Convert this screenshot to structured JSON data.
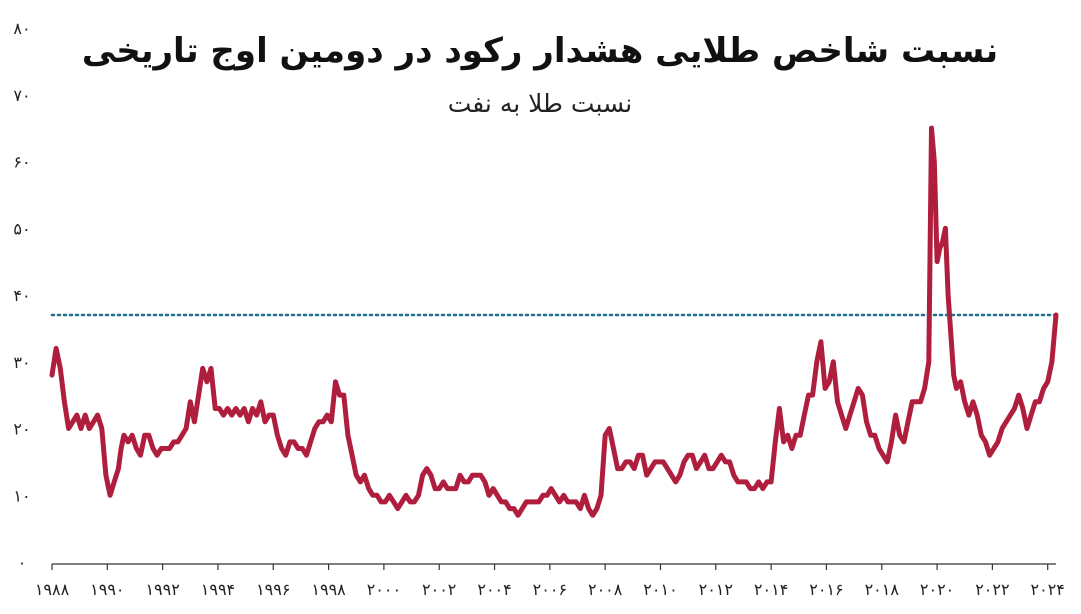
{
  "chart_data": {
    "type": "line",
    "title": "نسبت شاخص طلایی هشدار رکود در دومین اوج تاریخی",
    "subtitle": "نسبت طلا به نفت",
    "xlabel": "",
    "ylabel": "",
    "xlim": [
      1988,
      2024.3
    ],
    "ylim": [
      0,
      80
    ],
    "x_tick_labels": [
      "۱۹۸۸",
      "۱۹۹۰",
      "۱۹۹۲",
      "۱۹۹۴",
      "۱۹۹۶",
      "۱۹۹۸",
      "۲۰۰۰",
      "۲۰۰۲",
      "۲۰۰۴",
      "۲۰۰۶",
      "۲۰۰۸",
      "۲۰۱۰",
      "۲۰۱۲",
      "۲۰۱۴",
      "۲۰۱۶",
      "۲۰۱۸",
      "۲۰۲۰",
      "۲۰۲۲",
      "۲۰۲۴"
    ],
    "y_tick_labels": [
      "۰",
      "۱۰",
      "۲۰",
      "۳۰",
      "۴۰",
      "۵۰",
      "۶۰",
      "۷۰",
      "۸۰"
    ],
    "grid": false,
    "series_color": "#b01e3e",
    "reference_line": {
      "y": 37,
      "color": "#1f6f8b",
      "style": "dotted"
    },
    "series": [
      {
        "x": [
          1988.0,
          1988.15,
          1988.3,
          1988.45,
          1988.6,
          1988.75,
          1988.9,
          1989.05,
          1989.2,
          1989.35,
          1989.5,
          1989.65,
          1989.8,
          1989.95,
          1990.1,
          1990.25,
          1990.4,
          1990.5,
          1990.6,
          1990.75,
          1990.9,
          1991.05,
          1991.2,
          1991.35,
          1991.5,
          1991.65,
          1991.8,
          1991.95,
          1992.1,
          1992.25,
          1992.4,
          1992.55,
          1992.7,
          1992.85,
          1993.0,
          1993.15,
          1993.3,
          1993.45,
          1993.6,
          1993.75,
          1993.9,
          1994.05,
          1994.2,
          1994.35,
          1994.5,
          1994.65,
          1994.8,
          1994.95,
          1995.1,
          1995.25,
          1995.4,
          1995.55,
          1995.7,
          1995.85,
          1996.0,
          1996.15,
          1996.3,
          1996.45,
          1996.6,
          1996.75,
          1996.9,
          1997.05,
          1997.2,
          1997.35,
          1997.5,
          1997.65,
          1997.8,
          1997.95,
          1998.1,
          1998.25,
          1998.4,
          1998.55,
          1998.7,
          1998.85,
          1999.0,
          1999.15,
          1999.3,
          1999.45,
          1999.6,
          1999.75,
          1999.9,
          2000.05,
          2000.2,
          2000.35,
          2000.5,
          2000.65,
          2000.8,
          2000.95,
          2001.1,
          2001.25,
          2001.4,
          2001.55,
          2001.7,
          2001.85,
          2002.0,
          2002.15,
          2002.3,
          2002.45,
          2002.6,
          2002.75,
          2002.9,
          2003.05,
          2003.2,
          2003.35,
          2003.5,
          2003.65,
          2003.8,
          2003.95,
          2004.1,
          2004.25,
          2004.4,
          2004.55,
          2004.7,
          2004.85,
          2005.0,
          2005.15,
          2005.3,
          2005.45,
          2005.6,
          2005.75,
          2005.9,
          2006.05,
          2006.2,
          2006.35,
          2006.5,
          2006.65,
          2006.8,
          2006.95,
          2007.1,
          2007.25,
          2007.4,
          2007.55,
          2007.7,
          2007.85,
          2008.0,
          2008.15,
          2008.3,
          2008.45,
          2008.6,
          2008.75,
          2008.9,
          2009.05,
          2009.2,
          2009.35,
          2009.5,
          2009.65,
          2009.8,
          2009.95,
          2010.1,
          2010.25,
          2010.4,
          2010.55,
          2010.7,
          2010.85,
          2011.0,
          2011.15,
          2011.3,
          2011.45,
          2011.6,
          2011.75,
          2011.9,
          2012.05,
          2012.2,
          2012.35,
          2012.5,
          2012.65,
          2012.8,
          2012.95,
          2013.1,
          2013.25,
          2013.4,
          2013.55,
          2013.7,
          2013.85,
          2014.0,
          2014.15,
          2014.3,
          2014.45,
          2014.6,
          2014.75,
          2014.9,
          2015.05,
          2015.2,
          2015.35,
          2015.5,
          2015.65,
          2015.8,
          2015.95,
          2016.1,
          2016.25,
          2016.4,
          2016.55,
          2016.7,
          2016.85,
          2017.0,
          2017.15,
          2017.3,
          2017.45,
          2017.6,
          2017.75,
          2017.9,
          2018.05,
          2018.2,
          2018.35,
          2018.5,
          2018.65,
          2018.8,
          2018.95,
          2019.1,
          2019.25,
          2019.4,
          2019.55,
          2019.7,
          2019.8,
          2019.9,
          2020.0,
          2020.1,
          2020.2,
          2020.3,
          2020.4,
          2020.5,
          2020.6,
          2020.7,
          2020.85,
          2021.0,
          2021.15,
          2021.3,
          2021.45,
          2021.6,
          2021.75,
          2021.9,
          2022.05,
          2022.2,
          2022.35,
          2022.5,
          2022.65,
          2022.8,
          2022.95,
          2023.1,
          2023.25,
          2023.4,
          2023.55,
          2023.7,
          2023.85,
          2024.0,
          2024.15,
          2024.3
        ],
        "y": [
          28,
          32,
          29,
          24,
          20,
          21,
          22,
          20,
          22,
          20,
          21,
          22,
          20,
          13,
          10,
          12,
          14,
          17,
          19,
          18,
          19,
          17,
          16,
          19,
          19,
          17,
          16,
          17,
          17,
          17,
          18,
          18,
          19,
          20,
          24,
          21,
          25,
          29,
          27,
          29,
          23,
          23,
          22,
          23,
          22,
          23,
          22,
          23,
          21,
          23,
          22,
          24,
          21,
          22,
          22,
          19,
          17,
          16,
          18,
          18,
          17,
          17,
          16,
          18,
          20,
          21,
          21,
          22,
          21,
          27,
          25,
          25,
          19,
          16,
          13,
          12,
          13,
          11,
          10,
          10,
          9,
          9,
          10,
          9,
          8,
          9,
          10,
          9,
          9,
          10,
          13,
          14,
          13,
          11,
          11,
          12,
          11,
          11,
          11,
          13,
          12,
          12,
          13,
          13,
          13,
          12,
          10,
          11,
          10,
          9,
          9,
          8,
          8,
          7,
          8,
          9,
          9,
          9,
          9,
          10,
          10,
          11,
          10,
          9,
          10,
          9,
          9,
          9,
          8,
          10,
          8,
          7,
          8,
          10,
          19,
          20,
          17,
          14,
          14,
          15,
          15,
          14,
          16,
          16,
          13,
          14,
          15,
          15,
          15,
          14,
          13,
          12,
          13,
          15,
          16,
          16,
          14,
          15,
          16,
          14,
          14,
          15,
          16,
          15,
          15,
          13,
          12,
          12,
          12,
          11,
          11,
          12,
          11,
          12,
          12,
          18,
          23,
          18,
          19,
          17,
          19,
          19,
          22,
          25,
          25,
          30,
          33,
          26,
          27,
          30,
          24,
          22,
          20,
          22,
          24,
          26,
          25,
          21,
          19,
          19,
          17,
          16,
          15,
          18,
          22,
          19,
          18,
          21,
          24,
          24,
          24,
          26,
          30,
          65,
          60,
          45,
          47,
          48,
          50,
          40,
          34,
          28,
          26,
          27,
          24,
          22,
          24,
          22,
          19,
          18,
          16,
          17,
          18,
          20,
          21,
          22,
          23,
          25,
          23,
          20,
          22,
          24,
          24,
          26,
          27,
          30,
          37
        ]
      }
    ]
  }
}
